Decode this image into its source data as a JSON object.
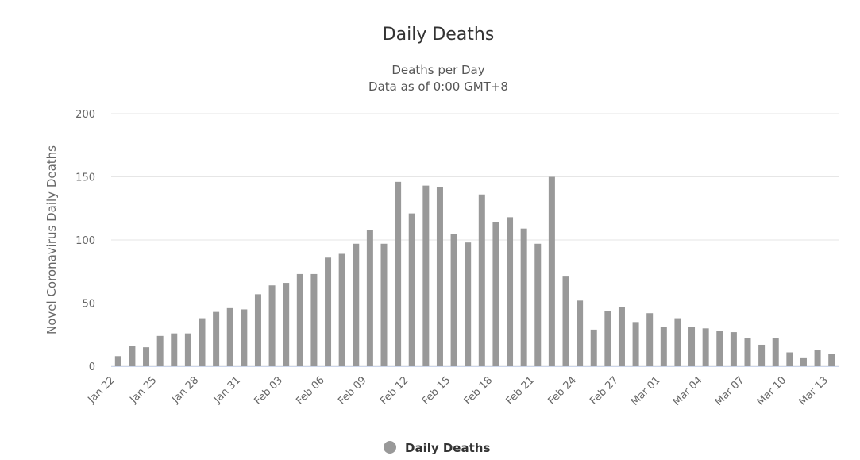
{
  "chart_data": {
    "type": "bar",
    "title": "Daily Deaths",
    "subtitle": [
      "Deaths per Day",
      "Data as of 0:00 GMT+8"
    ],
    "y_label": "Novel Coronavirus Daily Deaths",
    "categories": [
      "Jan 22",
      null,
      null,
      "Jan 25",
      null,
      null,
      "Jan 28",
      null,
      null,
      "Jan 31",
      null,
      null,
      "Feb 03",
      null,
      null,
      "Feb 06",
      null,
      null,
      "Feb 09",
      null,
      null,
      "Feb 12",
      null,
      null,
      "Feb 15",
      null,
      null,
      "Feb 18",
      null,
      null,
      "Feb 21",
      null,
      null,
      "Feb 24",
      null,
      null,
      "Feb 27",
      null,
      null,
      "Mar 01",
      null,
      null,
      "Mar 04",
      null,
      null,
      "Mar 07",
      null,
      null,
      "Mar 10",
      null,
      null,
      "Mar 13"
    ],
    "series": [
      {
        "name": "Daily Deaths",
        "color": "#999999",
        "values": [
          8,
          16,
          15,
          24,
          26,
          26,
          38,
          43,
          46,
          45,
          57,
          64,
          66,
          73,
          73,
          86,
          89,
          97,
          108,
          97,
          146,
          121,
          143,
          142,
          105,
          98,
          136,
          114,
          118,
          109,
          97,
          150,
          71,
          52,
          29,
          44,
          47,
          35,
          42,
          31,
          38,
          31,
          30,
          28,
          27,
          22,
          17,
          22,
          11,
          7,
          13,
          10
        ]
      }
    ],
    "ylim": [
      0,
      200
    ],
    "yticks": [
      0,
      50,
      100,
      150,
      200
    ],
    "grid": true
  }
}
